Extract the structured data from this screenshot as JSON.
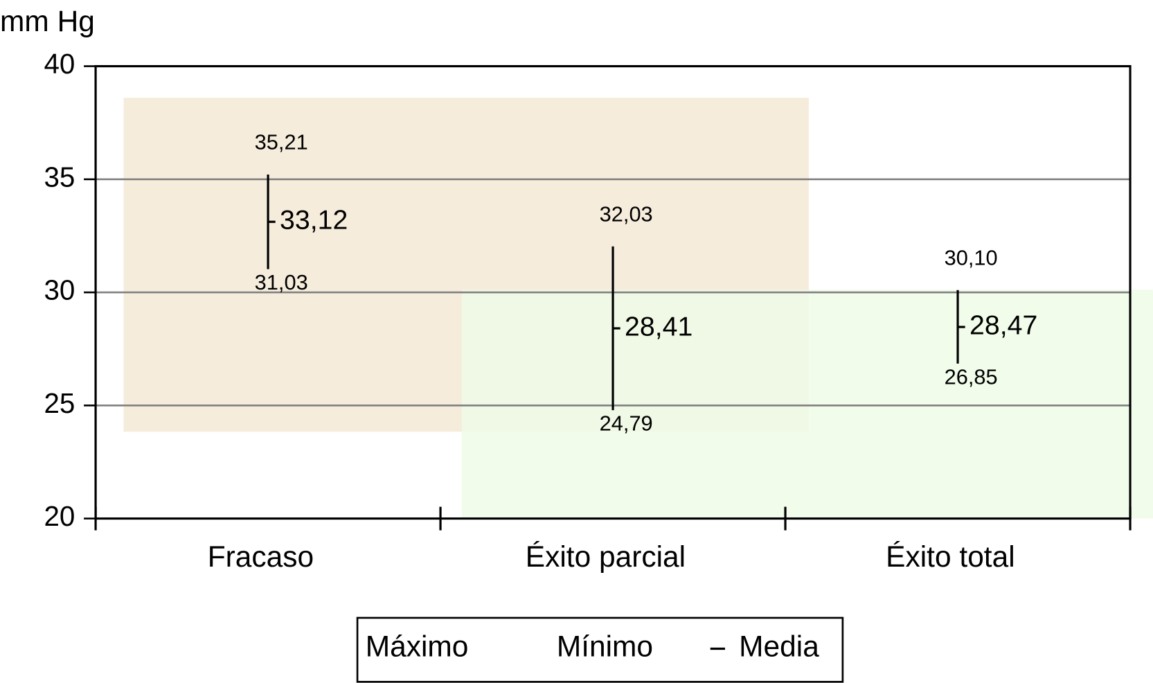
{
  "chart_data": {
    "type": "hilo",
    "y_label": "mm Hg",
    "categories": [
      "Fracaso",
      "Éxito parcial",
      "Éxito total"
    ],
    "series": [
      {
        "name": "Máximo",
        "color": "#000000",
        "values": [
          35.21,
          32.03,
          30.1
        ],
        "value_labels": [
          "35,21",
          "32,03",
          "30,10"
        ]
      },
      {
        "name": "Mínimo",
        "color": "#000000",
        "values": [
          31.03,
          24.79,
          26.85
        ],
        "value_labels": [
          "31,03",
          "24,79",
          "26,85"
        ]
      },
      {
        "name": "Media",
        "color": "#000000",
        "values": [
          33.12,
          28.41,
          28.47
        ],
        "value_labels": [
          "33,12",
          "28,41",
          "28,47"
        ]
      }
    ],
    "ylim": [
      20,
      40
    ],
    "yticks": [
      20,
      25,
      30,
      35,
      40
    ],
    "grid": true
  }
}
